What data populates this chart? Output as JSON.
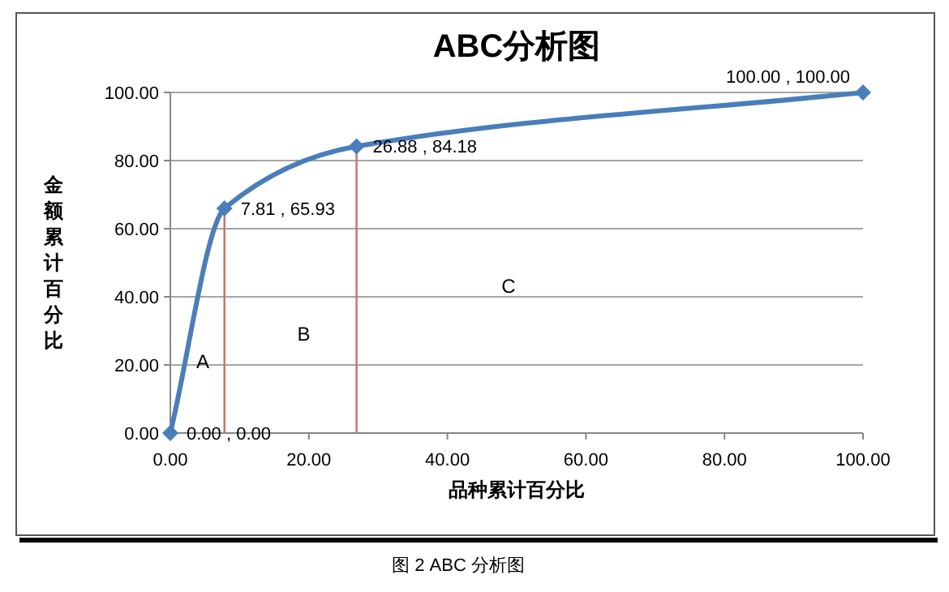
{
  "chart_data": {
    "type": "line",
    "title": "ABC分析图",
    "xlabel": "品种累计百分比",
    "ylabel": "金额累计百分比",
    "series": [
      {
        "color": "#4a7ebb",
        "x": [
          0,
          7.81,
          26.88,
          100
        ],
        "values": [
          0,
          65.93,
          84.18,
          100
        ],
        "value_labels": [
          "0.00 , 0.00",
          "7.81 , 65.93",
          "26.88 , 84.18",
          "100.00 , 100.00"
        ]
      }
    ],
    "xlim": [
      0,
      100
    ],
    "ylim": [
      0,
      100
    ],
    "xticks": [
      {
        "value": 0,
        "label": "0.00"
      },
      {
        "value": 20,
        "label": "20.00"
      },
      {
        "value": 40,
        "label": "40.00"
      },
      {
        "value": 60,
        "label": "60.00"
      },
      {
        "value": 80,
        "label": "80.00"
      },
      {
        "value": 100,
        "label": "100.00"
      }
    ],
    "yticks": [
      {
        "value": 0,
        "label": "0.00"
      },
      {
        "value": 20,
        "label": "20.00"
      },
      {
        "value": 40,
        "label": "40.00"
      },
      {
        "value": 60,
        "label": "60.00"
      },
      {
        "value": 80,
        "label": "80.00"
      },
      {
        "value": 100,
        "label": "100.00"
      }
    ],
    "ref_lines": [
      {
        "axis": "x",
        "value": 7.81,
        "color": "#d46a6a"
      },
      {
        "axis": "x",
        "value": 26.88,
        "color": "#d46a6a"
      }
    ],
    "annotations": [
      "A",
      "B",
      "C",
      "图 2 ABC 分析图"
    ],
    "grid": "y",
    "marker": "diamond",
    "line_style": "solid"
  }
}
